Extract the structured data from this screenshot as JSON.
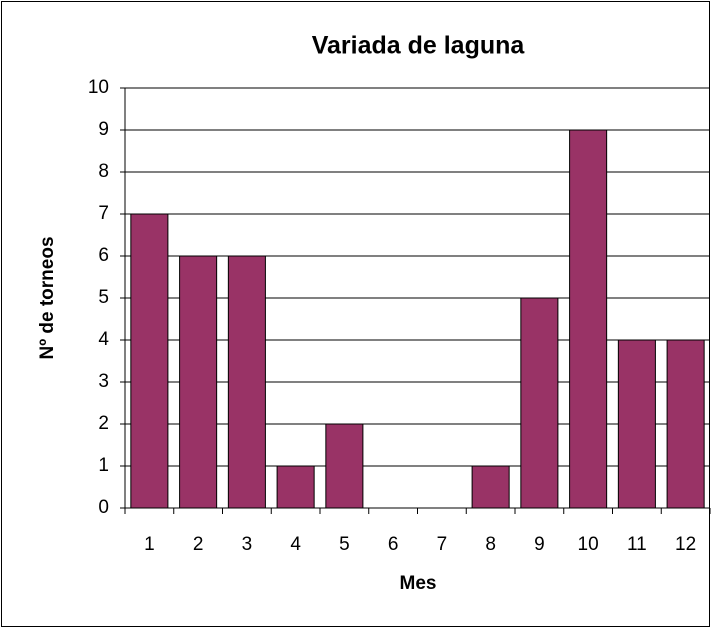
{
  "chart_data": {
    "type": "bar",
    "title": "Variada de laguna",
    "x_label": "Mes",
    "y_label": "Nº de torneos",
    "categories": [
      "1",
      "2",
      "3",
      "4",
      "5",
      "6",
      "7",
      "8",
      "9",
      "10",
      "11",
      "12"
    ],
    "values": [
      7,
      6,
      6,
      1,
      2,
      0,
      0,
      1,
      5,
      9,
      4,
      4
    ],
    "color": "#993366",
    "ylim": [
      0,
      10
    ],
    "yticks": [
      0,
      1,
      2,
      3,
      4,
      5,
      6,
      7,
      8,
      9,
      10
    ],
    "grid": true
  }
}
